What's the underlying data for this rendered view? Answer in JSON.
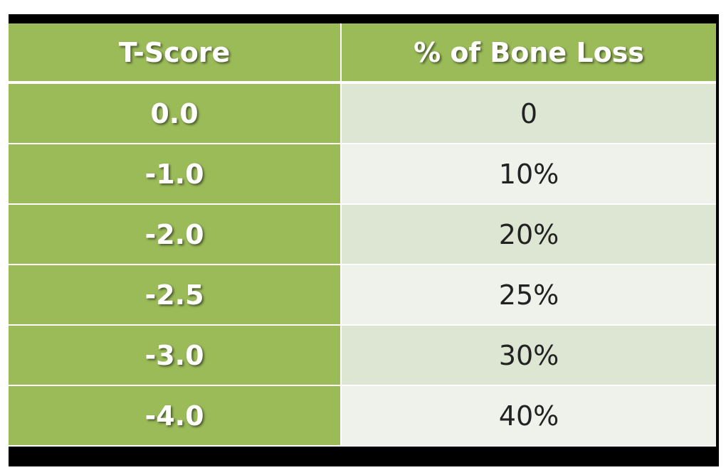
{
  "table": {
    "headers": [
      "T-Score",
      "% of Bone Loss"
    ],
    "rows": [
      [
        "0.0",
        "0"
      ],
      [
        "-1.0",
        "10%"
      ],
      [
        "-2.0",
        "20%"
      ],
      [
        "-2.5",
        "25%"
      ],
      [
        "-3.0",
        "30%"
      ],
      [
        "-4.0",
        "40%"
      ]
    ]
  }
}
